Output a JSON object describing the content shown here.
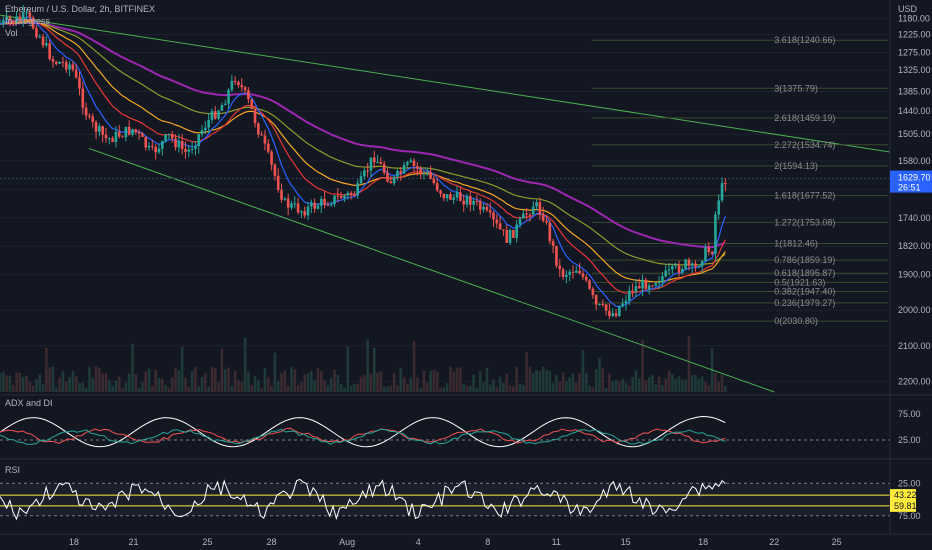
{
  "header": {
    "symbol": "Ethereum / U.S. Dollar, 2h, BITFINEX",
    "status": "In progress",
    "vol_label": "Vol"
  },
  "price_axis": {
    "unit": "USD",
    "ticks": [
      "1180.00",
      "1225.00",
      "1275.00",
      "1325.00",
      "1385.00",
      "1440.00",
      "1505.00",
      "1580.00",
      "1660.00",
      "1740.00",
      "1820.00",
      "1900.00",
      "2000.00",
      "2100.00",
      "2200.00"
    ],
    "current_price": "1629.70",
    "countdown": "26:51"
  },
  "time_axis": {
    "ticks": [
      "18",
      "21",
      "25",
      "28",
      "Aug",
      "4",
      "8",
      "11",
      "15",
      "18",
      "22",
      "25"
    ]
  },
  "fib_levels": [
    {
      "label": "3.618(1240.66)"
    },
    {
      "label": "3(1375.79)"
    },
    {
      "label": "2.618(1459.19)"
    },
    {
      "label": "2.272(1534.74)"
    },
    {
      "label": "2(1594.13)"
    },
    {
      "label": "1.618(1677.52)"
    },
    {
      "label": "1.272(1753.08)"
    },
    {
      "label": "1(1812.46)"
    },
    {
      "label": "0.786(1859.19)"
    },
    {
      "label": "0.618(1895.87)"
    },
    {
      "label": "0.5(1921.63)"
    },
    {
      "label": "0.382(1947.40)"
    },
    {
      "label": "0.236(1979.27)"
    },
    {
      "label": "0(2030.80)"
    }
  ],
  "adx_panel": {
    "title": "ADX and DI",
    "ticks": [
      "75.00",
      "25.00"
    ]
  },
  "rsi_panel": {
    "title": "RSI",
    "ticks": [
      "25.00",
      "75.00"
    ],
    "badges": [
      "43.22",
      "59.81"
    ]
  },
  "colors": {
    "bg": "#131722",
    "up": "#26a69a",
    "down": "#ef5350",
    "ma_purple": "#9c27b0",
    "ma_olive": "#8f9a2a",
    "ma_orange": "#f5a623",
    "ma_red": "#e53935",
    "ma_blue": "#2962ff",
    "trend": "#4caf50",
    "adx": "#ffffff",
    "badge": "#ffeb3b"
  },
  "chart_data": {
    "type": "candlestick",
    "title": "Ethereum / U.S. Dollar, 2h, BITFINEX",
    "ylabel": "USD",
    "y_axis_inverted": true,
    "ylim": [
      1150,
      2230
    ],
    "x_ticks": [
      "18",
      "21",
      "25",
      "28",
      "Aug",
      "4",
      "8",
      "11",
      "15",
      "18",
      "22",
      "25"
    ],
    "price_path": [
      {
        "x": 0.0,
        "p": 1195
      },
      {
        "x": 0.03,
        "p": 1175
      },
      {
        "x": 0.045,
        "p": 1230
      },
      {
        "x": 0.06,
        "p": 1300
      },
      {
        "x": 0.08,
        "p": 1310
      },
      {
        "x": 0.1,
        "p": 1470
      },
      {
        "x": 0.12,
        "p": 1520
      },
      {
        "x": 0.15,
        "p": 1490
      },
      {
        "x": 0.17,
        "p": 1560
      },
      {
        "x": 0.19,
        "p": 1510
      },
      {
        "x": 0.21,
        "p": 1560
      },
      {
        "x": 0.23,
        "p": 1480
      },
      {
        "x": 0.25,
        "p": 1420
      },
      {
        "x": 0.265,
        "p": 1340
      },
      {
        "x": 0.28,
        "p": 1420
      },
      {
        "x": 0.3,
        "p": 1560
      },
      {
        "x": 0.32,
        "p": 1700
      },
      {
        "x": 0.34,
        "p": 1720
      },
      {
        "x": 0.37,
        "p": 1690
      },
      {
        "x": 0.4,
        "p": 1670
      },
      {
        "x": 0.42,
        "p": 1565
      },
      {
        "x": 0.44,
        "p": 1640
      },
      {
        "x": 0.46,
        "p": 1590
      },
      {
        "x": 0.48,
        "p": 1620
      },
      {
        "x": 0.5,
        "p": 1680
      },
      {
        "x": 0.53,
        "p": 1690
      },
      {
        "x": 0.55,
        "p": 1740
      },
      {
        "x": 0.57,
        "p": 1800
      },
      {
        "x": 0.58,
        "p": 1770
      },
      {
        "x": 0.6,
        "p": 1700
      },
      {
        "x": 0.61,
        "p": 1730
      },
      {
        "x": 0.63,
        "p": 1900
      },
      {
        "x": 0.65,
        "p": 1880
      },
      {
        "x": 0.67,
        "p": 1990
      },
      {
        "x": 0.69,
        "p": 2010
      },
      {
        "x": 0.71,
        "p": 1940
      },
      {
        "x": 0.73,
        "p": 1920
      },
      {
        "x": 0.75,
        "p": 1900
      },
      {
        "x": 0.77,
        "p": 1870
      },
      {
        "x": 0.78,
        "p": 1890
      },
      {
        "x": 0.79,
        "p": 1840
      },
      {
        "x": 0.8,
        "p": 1830
      },
      {
        "x": 0.805,
        "p": 1700
      },
      {
        "x": 0.815,
        "p": 1629.7
      }
    ],
    "fib_levels": [
      {
        "ratio": "3.618",
        "price": 1240.66
      },
      {
        "ratio": "3",
        "price": 1375.79
      },
      {
        "ratio": "2.618",
        "price": 1459.19
      },
      {
        "ratio": "2.272",
        "price": 1534.74
      },
      {
        "ratio": "2",
        "price": 1594.13
      },
      {
        "ratio": "1.618",
        "price": 1677.52
      },
      {
        "ratio": "1.272",
        "price": 1753.08
      },
      {
        "ratio": "1",
        "price": 1812.46
      },
      {
        "ratio": "0.786",
        "price": 1859.19
      },
      {
        "ratio": "0.618",
        "price": 1895.87
      },
      {
        "ratio": "0.5",
        "price": 1921.63
      },
      {
        "ratio": "0.382",
        "price": 1947.4
      },
      {
        "ratio": "0.236",
        "price": 1979.27
      },
      {
        "ratio": "0",
        "price": 2030.8
      }
    ],
    "current_price": 1629.7,
    "adx_range": [
      0,
      100
    ],
    "rsi_levels": [
      43.22,
      59.81
    ]
  }
}
